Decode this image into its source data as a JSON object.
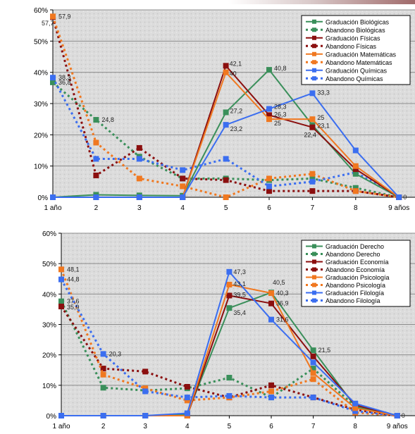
{
  "colors": {
    "green": "#3a8f5a",
    "darkred": "#8b0f0f",
    "orange": "#f07820",
    "blue": "#3b6ef0"
  },
  "chart_data": [
    {
      "type": "line",
      "categories": [
        "1 año",
        "2",
        "3",
        "4",
        "5",
        "6",
        "7",
        "8",
        "9 años"
      ],
      "ylim": [
        0,
        60
      ],
      "yticks": [
        "0%",
        "10%",
        "20%",
        "30%",
        "40%",
        "50%",
        "60%"
      ],
      "grid": true,
      "legend": "top-right",
      "series": [
        {
          "name": "Graduación Biológicas",
          "color": "green",
          "dash": false,
          "values": [
            0,
            0.8,
            0.6,
            0.5,
            27.2,
            40.8,
            23.1,
            7.5,
            0
          ]
        },
        {
          "name": "Abandono Biológicas",
          "color": "green",
          "dash": true,
          "values": [
            36.8,
            24.8,
            13,
            6,
            6,
            5.5,
            6,
            3,
            0
          ]
        },
        {
          "name": "Graduación Físicas",
          "color": "darkred",
          "dash": false,
          "values": [
            0,
            0,
            0,
            0,
            42.1,
            26.3,
            22.4,
            9,
            0
          ]
        },
        {
          "name": "Abandono Físicas",
          "color": "darkred",
          "dash": true,
          "values": [
            57.7,
            7,
            15.8,
            6,
            5.5,
            2,
            2,
            2,
            0
          ]
        },
        {
          "name": "Graduación Matemáticas",
          "color": "orange",
          "dash": false,
          "values": [
            0,
            0,
            0,
            0,
            40,
            25,
            25,
            10,
            0
          ]
        },
        {
          "name": "Abandono Matemáticas",
          "color": "orange",
          "dash": true,
          "values": [
            57.9,
            17.5,
            6,
            3.5,
            0,
            6,
            7.5,
            2,
            0
          ]
        },
        {
          "name": "Graduación Químicas",
          "color": "blue",
          "dash": false,
          "values": [
            0,
            0,
            0,
            0,
            23.2,
            28.3,
            33.3,
            15,
            0
          ]
        },
        {
          "name": "Abandono Químicas",
          "color": "blue",
          "dash": true,
          "values": [
            38.3,
            12.3,
            12.3,
            8.7,
            12.3,
            3.5,
            5,
            8,
            0
          ]
        }
      ],
      "data_labels": [
        {
          "cat": 0,
          "y": 57.9,
          "text": "57,9",
          "dx": 8,
          "dy": 3
        },
        {
          "cat": 0,
          "y": 57.7,
          "text": "57,7",
          "dx": -16,
          "dy": 12
        },
        {
          "cat": 0,
          "y": 38.3,
          "text": "38,3",
          "dx": 8,
          "dy": 3
        },
        {
          "cat": 0,
          "y": 36.8,
          "text": "36,8",
          "dx": 8,
          "dy": 3
        },
        {
          "cat": 1,
          "y": 24.8,
          "text": "24,8",
          "dx": 8,
          "dy": 3
        },
        {
          "cat": 4,
          "y": 42.1,
          "text": "42,1",
          "dx": 5,
          "dy": 0
        },
        {
          "cat": 4,
          "y": 40,
          "text": "40",
          "dx": 5,
          "dy": 5
        },
        {
          "cat": 4,
          "y": 27.2,
          "text": "27,2",
          "dx": 6,
          "dy": 1
        },
        {
          "cat": 4,
          "y": 23.2,
          "text": "23,2",
          "dx": 6,
          "dy": 9
        },
        {
          "cat": 5,
          "y": 40.8,
          "text": "40,8",
          "dx": 7,
          "dy": 1
        },
        {
          "cat": 5,
          "y": 28.3,
          "text": "28,3",
          "dx": 7,
          "dy": 0
        },
        {
          "cat": 5,
          "y": 26.3,
          "text": "26,3",
          "dx": 7,
          "dy": 2
        },
        {
          "cat": 5,
          "y": 25,
          "text": "25",
          "dx": 7,
          "dy": 9
        },
        {
          "cat": 6,
          "y": 33.3,
          "text": "33,3",
          "dx": 7,
          "dy": 2
        },
        {
          "cat": 6,
          "y": 25,
          "text": "25",
          "dx": 7,
          "dy": 1
        },
        {
          "cat": 6,
          "y": 23.1,
          "text": "23,1",
          "dx": 7,
          "dy": 4
        },
        {
          "cat": 6,
          "y": 22.4,
          "text": "22,4",
          "dx": -12,
          "dy": 14
        },
        {
          "cat": 8,
          "y": 0,
          "text": "0",
          "dx": 6,
          "dy": 3
        }
      ]
    },
    {
      "type": "line",
      "categories": [
        "1 año",
        "2",
        "3",
        "4",
        "5",
        "6",
        "7",
        "8",
        "9 años"
      ],
      "ylim": [
        0,
        60
      ],
      "yticks": [
        "0%",
        "10%",
        "20%",
        "30%",
        "40%",
        "50%",
        "60%"
      ],
      "grid": true,
      "legend": "top-right",
      "series": [
        {
          "name": "Graduación Derecho",
          "color": "green",
          "dash": false,
          "values": [
            0,
            0,
            0,
            0.5,
            35.4,
            40.5,
            21.5,
            3,
            0
          ]
        },
        {
          "name": "Abandono Derecho",
          "color": "green",
          "dash": true,
          "values": [
            37.6,
            9.2,
            8.3,
            9,
            12.5,
            6,
            15.5,
            3,
            0
          ]
        },
        {
          "name": "Graduación Economía",
          "color": "darkred",
          "dash": false,
          "values": [
            0,
            0,
            0,
            0,
            39.5,
            36.9,
            19.5,
            3.5,
            0
          ]
        },
        {
          "name": "Abandono Economía",
          "color": "darkred",
          "dash": true,
          "values": [
            35.9,
            15.5,
            14.5,
            9.5,
            6,
            10,
            6,
            2,
            0
          ]
        },
        {
          "name": "Graduación Psicología",
          "color": "orange",
          "dash": false,
          "values": [
            0,
            0,
            0,
            0,
            43.1,
            40.3,
            14,
            2.5,
            0
          ]
        },
        {
          "name": "Abandono Psicología",
          "color": "orange",
          "dash": true,
          "values": [
            48.1,
            13.5,
            9,
            5,
            6,
            8,
            12,
            1,
            0
          ]
        },
        {
          "name": "Graduación Filología",
          "color": "blue",
          "dash": false,
          "values": [
            0,
            0,
            0,
            0.8,
            47.3,
            31.6,
            17.5,
            4,
            0
          ]
        },
        {
          "name": "Abandono Filología",
          "color": "blue",
          "dash": true,
          "values": [
            44.8,
            20.3,
            8,
            6,
            6.5,
            6,
            6,
            1.5,
            0
          ]
        }
      ],
      "data_labels": [
        {
          "cat": 0,
          "y": 48.1,
          "text": "48,1",
          "dx": 8,
          "dy": 3
        },
        {
          "cat": 0,
          "y": 44.8,
          "text": "44,8",
          "dx": 8,
          "dy": 3
        },
        {
          "cat": 0,
          "y": 37.6,
          "text": "37,6",
          "dx": 8,
          "dy": 3
        },
        {
          "cat": 0,
          "y": 35.9,
          "text": "35,9",
          "dx": 8,
          "dy": 4
        },
        {
          "cat": 1,
          "y": 20.3,
          "text": "20,3",
          "dx": 8,
          "dy": 3
        },
        {
          "cat": 4,
          "y": 47.3,
          "text": "47,3",
          "dx": 6,
          "dy": 3
        },
        {
          "cat": 4,
          "y": 43.1,
          "text": "43,1",
          "dx": 6,
          "dy": 2
        },
        {
          "cat": 4,
          "y": 39.5,
          "text": "39,5",
          "dx": 6,
          "dy": 2
        },
        {
          "cat": 4,
          "y": 35.4,
          "text": "35,4",
          "dx": 6,
          "dy": 10
        },
        {
          "cat": 5,
          "y": 40.5,
          "text": "40,5",
          "dx": 2,
          "dy": -11
        },
        {
          "cat": 5,
          "y": 40.3,
          "text": "40,3",
          "dx": 7,
          "dy": 3
        },
        {
          "cat": 5,
          "y": 36.9,
          "text": "36,9",
          "dx": 7,
          "dy": 3
        },
        {
          "cat": 5,
          "y": 31.6,
          "text": "31,6",
          "dx": 7,
          "dy": 3
        },
        {
          "cat": 6,
          "y": 21.5,
          "text": "21,5",
          "dx": 7,
          "dy": 3
        },
        {
          "cat": 8,
          "y": 0,
          "text": "0",
          "dx": 6,
          "dy": 3
        }
      ]
    }
  ]
}
